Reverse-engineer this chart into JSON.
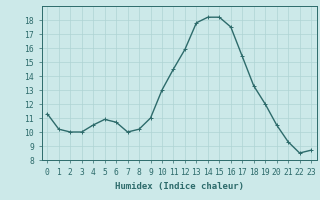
{
  "x": [
    0,
    1,
    2,
    3,
    4,
    5,
    6,
    7,
    8,
    9,
    10,
    11,
    12,
    13,
    14,
    15,
    16,
    17,
    18,
    19,
    20,
    21,
    22,
    23
  ],
  "y": [
    11.3,
    10.2,
    10.0,
    10.0,
    10.5,
    10.9,
    10.7,
    10.0,
    10.2,
    11.0,
    13.0,
    14.5,
    15.9,
    17.8,
    18.2,
    18.2,
    17.5,
    15.4,
    13.3,
    12.0,
    10.5,
    9.3,
    8.5,
    8.7
  ],
  "line_color": "#2d6b6b",
  "marker_color": "#2d6b6b",
  "bg_color": "#cce9e9",
  "grid_color": "#afd4d4",
  "xlabel": "Humidex (Indice chaleur)",
  "ylim": [
    8,
    19
  ],
  "xlim": [
    -0.5,
    23.5
  ],
  "yticks": [
    8,
    9,
    10,
    11,
    12,
    13,
    14,
    15,
    16,
    17,
    18
  ],
  "xticks": [
    0,
    1,
    2,
    3,
    4,
    5,
    6,
    7,
    8,
    9,
    10,
    11,
    12,
    13,
    14,
    15,
    16,
    17,
    18,
    19,
    20,
    21,
    22,
    23
  ],
  "xlabel_fontsize": 6.5,
  "tick_fontsize": 5.8,
  "marker_size": 2.5,
  "line_width": 1.0
}
